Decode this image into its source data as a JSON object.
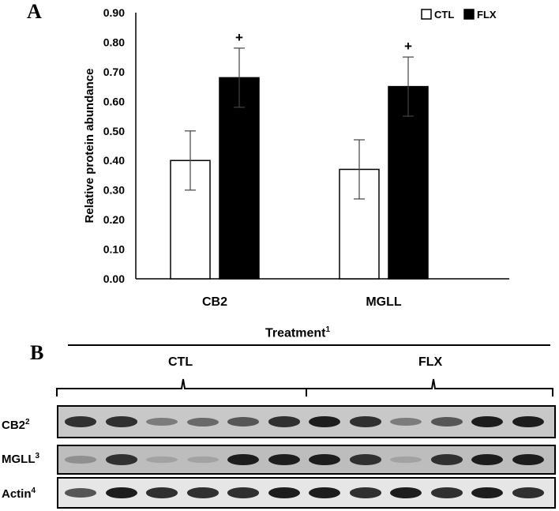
{
  "panel_a": {
    "label": "A",
    "chart_data": {
      "type": "bar",
      "title": "",
      "xlabel": "",
      "ylabel": "Relative protein abundance",
      "ylim": [
        0,
        0.9
      ],
      "yticks": [
        "0.00",
        "0.10",
        "0.20",
        "0.30",
        "0.40",
        "0.50",
        "0.60",
        "0.70",
        "0.80",
        "0.90"
      ],
      "categories": [
        "CB2",
        "MGLL"
      ],
      "series": [
        {
          "name": "CTL",
          "values": [
            0.4,
            0.37
          ],
          "errors": [
            0.1,
            0.1
          ],
          "color": "#ffffff"
        },
        {
          "name": "FLX",
          "values": [
            0.68,
            0.65
          ],
          "errors": [
            0.1,
            0.1
          ],
          "color": "#000000"
        }
      ],
      "annotations": [
        "+",
        "+"
      ],
      "legend_position": "top-right",
      "grid": false
    }
  },
  "panel_b": {
    "label": "B",
    "treatment_label": "Treatment",
    "treatment_sup": "1",
    "groups": [
      "CTL",
      "FLX"
    ],
    "lanes": [
      {
        "name": "CB2",
        "sup": "2",
        "intensities": [
          0.8,
          0.8,
          0.4,
          0.5,
          0.6,
          0.8,
          0.9,
          0.8,
          0.4,
          0.6,
          0.9,
          0.9
        ]
      },
      {
        "name": "MGLL",
        "sup": "3",
        "intensities": [
          0.3,
          0.8,
          0.2,
          0.2,
          0.9,
          0.9,
          0.9,
          0.8,
          0.2,
          0.8,
          0.9,
          0.9
        ]
      },
      {
        "name": "Actin",
        "sup": "4",
        "intensities": [
          0.6,
          0.9,
          0.8,
          0.8,
          0.8,
          0.9,
          0.9,
          0.8,
          0.9,
          0.8,
          0.9,
          0.8
        ]
      }
    ]
  }
}
